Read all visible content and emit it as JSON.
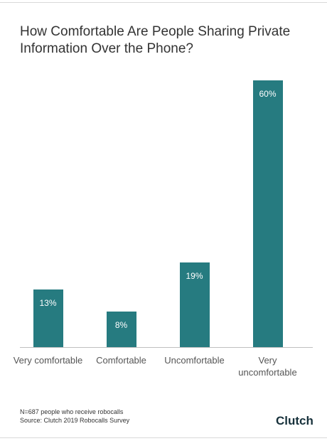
{
  "chart_data": {
    "type": "bar",
    "title": "How Comfortable Are People Sharing Private Information Over the Phone?",
    "categories": [
      "Very comfortable",
      "Comfortable",
      "Uncomfortable",
      "Very uncomfortable"
    ],
    "values": [
      13,
      8,
      19,
      60
    ],
    "value_labels": [
      "13%",
      "8%",
      "19%",
      "60%"
    ],
    "color": "#267b80",
    "notes": [
      "N=687 people who receive robocalls",
      "Source: Clutch 2019 Robocalls Survey"
    ],
    "brand": "Clutch"
  }
}
